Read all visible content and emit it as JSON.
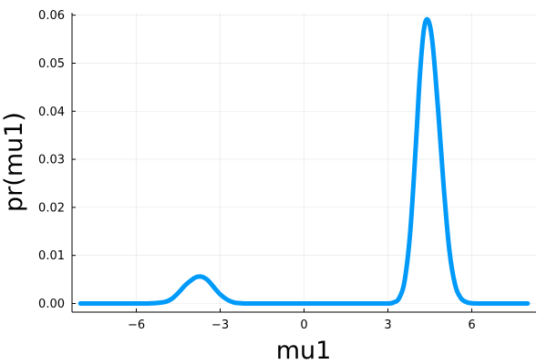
{
  "chart_data": {
    "type": "line",
    "title": "",
    "xlabel": "mu1",
    "ylabel": "pr(mu1)",
    "xlim": [
      -8.3,
      8.3
    ],
    "ylim": [
      -0.0018,
      0.0605
    ],
    "x_ticks": [
      -6,
      -3,
      0,
      3,
      6
    ],
    "x_tick_labels": [
      "−6",
      "−3",
      "0",
      "3",
      "6"
    ],
    "y_ticks": [
      0.0,
      0.01,
      0.02,
      0.03,
      0.04,
      0.05,
      0.06
    ],
    "y_tick_labels": [
      "0.00",
      "0.01",
      "0.02",
      "0.03",
      "0.04",
      "0.05",
      "0.06"
    ],
    "grid": true,
    "legend": "none",
    "series_color": "#009AFA",
    "series": [
      {
        "x": [
          -8.0,
          -7.0,
          -6.0,
          -5.5,
          -5.0,
          -4.75,
          -4.5,
          -4.25,
          -4.0,
          -3.85,
          -3.7,
          -3.55,
          -3.4,
          -3.2,
          -3.0,
          -2.75,
          -2.5,
          -2.25,
          -2.0,
          -1.0,
          0.0,
          1.0,
          2.0,
          2.5,
          3.0,
          3.2,
          3.4,
          3.6,
          3.8,
          4.0,
          4.15,
          4.3,
          4.45,
          4.6,
          4.8,
          5.0,
          5.2,
          5.4,
          5.6,
          5.8,
          6.0,
          6.5,
          7.0,
          8.0
        ],
        "y": [
          0.0,
          0.0,
          0.0,
          2e-05,
          0.0003,
          0.0009,
          0.0022,
          0.0038,
          0.005,
          0.0055,
          0.0056,
          0.0053,
          0.0046,
          0.0032,
          0.0019,
          0.0008,
          0.0002,
          5e-05,
          0.0,
          0.0,
          0.0,
          0.0,
          0.0,
          0.0,
          0.0,
          0.0002,
          0.0011,
          0.0048,
          0.015,
          0.033,
          0.048,
          0.0575,
          0.0588,
          0.054,
          0.04,
          0.024,
          0.011,
          0.004,
          0.0012,
          0.0003,
          5e-05,
          0.0,
          0.0,
          0.0
        ]
      }
    ]
  }
}
